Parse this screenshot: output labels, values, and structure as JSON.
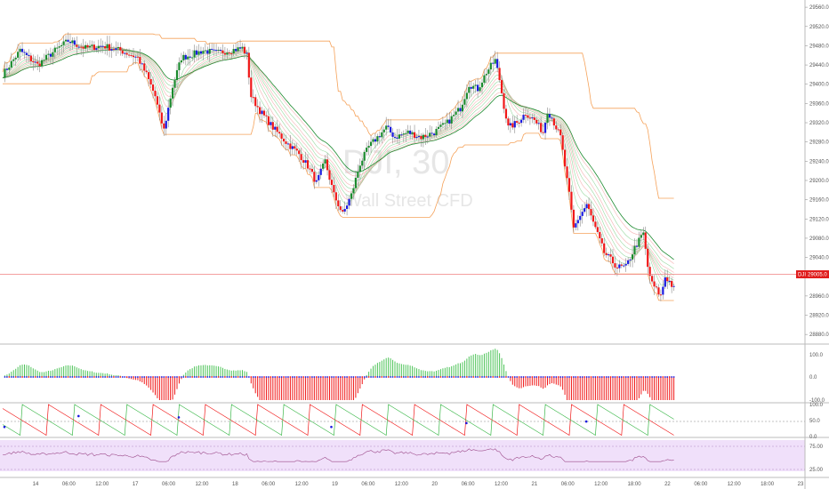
{
  "watermark": {
    "symbol": "DJI, 30",
    "name": "Wall Street CFD"
  },
  "price_label": {
    "symbol": "DJI",
    "value": "29005.0"
  },
  "colors": {
    "up_green": "#1b8a2e",
    "down_red": "#f01818",
    "pullback_blue": "#1a1ae0",
    "channel_orange": "#f5a25a",
    "price_line": "#f08080",
    "ribbon_green": "#7fcf8a",
    "ribbon_red": "#f2a0a0",
    "rsi_line": "#9c4a8a",
    "rsi_band": "#f0e0fa"
  },
  "chart_data": [
    {
      "type": "candlestick",
      "panel": "price",
      "y_ticks": [
        "29560.0",
        "29520.0",
        "29480.0",
        "29440.0",
        "29400.0",
        "29360.0",
        "29320.0",
        "29280.0",
        "29240.0",
        "29200.0",
        "29160.0",
        "29120.0",
        "29080.0",
        "29040.0",
        "29000.0",
        "28960.0",
        "28920.0",
        "28880.0"
      ],
      "ylim": [
        28860,
        29575
      ],
      "last_price": 29005.0,
      "approx_close_path": [
        [
          0,
          29420
        ],
        [
          8,
          29470
        ],
        [
          16,
          29440
        ],
        [
          24,
          29470
        ],
        [
          30,
          29490
        ],
        [
          38,
          29475
        ],
        [
          46,
          29480
        ],
        [
          54,
          29470
        ],
        [
          62,
          29455
        ],
        [
          66,
          29420
        ],
        [
          70,
          29375
        ],
        [
          72,
          29335
        ],
        [
          74,
          29305
        ],
        [
          78,
          29395
        ],
        [
          82,
          29455
        ],
        [
          86,
          29460
        ],
        [
          92,
          29470
        ],
        [
          98,
          29465
        ],
        [
          104,
          29470
        ],
        [
          110,
          29475
        ],
        [
          112,
          29460
        ],
        [
          114,
          29375
        ],
        [
          118,
          29345
        ],
        [
          124,
          29310
        ],
        [
          130,
          29280
        ],
        [
          136,
          29255
        ],
        [
          140,
          29230
        ],
        [
          144,
          29195
        ],
        [
          148,
          29240
        ],
        [
          152,
          29170
        ],
        [
          156,
          29130
        ],
        [
          160,
          29170
        ],
        [
          164,
          29235
        ],
        [
          168,
          29270
        ],
        [
          172,
          29290
        ],
        [
          176,
          29310
        ],
        [
          180,
          29290
        ],
        [
          186,
          29300
        ],
        [
          192,
          29290
        ],
        [
          198,
          29300
        ],
        [
          204,
          29320
        ],
        [
          210,
          29350
        ],
        [
          214,
          29400
        ],
        [
          218,
          29390
        ],
        [
          222,
          29425
        ],
        [
          226,
          29450
        ],
        [
          228,
          29410
        ],
        [
          230,
          29355
        ],
        [
          232,
          29310
        ],
        [
          236,
          29320
        ],
        [
          240,
          29340
        ],
        [
          244,
          29325
        ],
        [
          248,
          29300
        ],
        [
          250,
          29345
        ],
        [
          252,
          29330
        ],
        [
          256,
          29290
        ],
        [
          260,
          29170
        ],
        [
          262,
          29100
        ],
        [
          264,
          29120
        ],
        [
          268,
          29150
        ],
        [
          272,
          29100
        ],
        [
          276,
          29050
        ],
        [
          282,
          29020
        ],
        [
          286,
          29020
        ],
        [
          290,
          29060
        ],
        [
          294,
          29090
        ],
        [
          296,
          29020
        ],
        [
          298,
          28985
        ],
        [
          302,
          28960
        ],
        [
          304,
          29000
        ],
        [
          306,
          28990
        ],
        [
          308,
          28975
        ]
      ]
    },
    {
      "type": "histogram",
      "panel": "momentum",
      "y_ticks": [
        "100.0",
        "0.0",
        "-100.0"
      ],
      "ylim": [
        -120,
        120
      ]
    },
    {
      "type": "line",
      "panel": "stochastic",
      "y_ticks": [
        "100.0",
        "50.0",
        "0.0"
      ],
      "ylim": [
        0,
        100
      ]
    },
    {
      "type": "line",
      "panel": "rsi",
      "y_ticks": [
        "75.00",
        "25.00"
      ],
      "ylim": [
        0,
        100
      ]
    }
  ],
  "x_ticks": [
    "14",
    "06:00",
    "12:00",
    "17",
    "06:00",
    "12:00",
    "18",
    "06:00",
    "12:00",
    "19",
    "06:00",
    "12:00",
    "20",
    "06:00",
    "12:00",
    "21",
    "06:00",
    "12:00",
    "18:00",
    "22",
    "06:00",
    "12:00",
    "18:00",
    "23"
  ]
}
